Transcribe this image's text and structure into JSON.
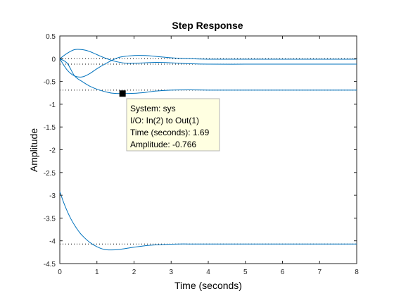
{
  "colors": {
    "curve": "#0072BD",
    "axis": "#262626",
    "steady_line": "#000000",
    "datatip_bg": "#FFFFE1",
    "datatip_border": "#B4B4B4",
    "marker": "#000000"
  },
  "chart_data": {
    "type": "line",
    "title": "Step Response",
    "xlabel": "Time (seconds)",
    "ylabel": "Amplitude",
    "xlim": [
      0,
      8
    ],
    "ylim": [
      -4.5,
      0.5
    ],
    "xticks": [
      "0",
      "1",
      "2",
      "3",
      "4",
      "5",
      "6",
      "7",
      "8"
    ],
    "yticks": [
      "0.5",
      "0",
      "-0.5",
      "-1",
      "-1.5",
      "-2",
      "-2.5",
      "-3",
      "-3.5",
      "-4",
      "-4.5"
    ],
    "grid": false,
    "series": [
      {
        "x": [
          0,
          0.2,
          0.4,
          0.6,
          0.8,
          1.0,
          1.2,
          1.5,
          1.8,
          2.0,
          2.3,
          2.6,
          3.0,
          3.5,
          4.0,
          5.0,
          6.0,
          7.0,
          8.0
        ],
        "y": [
          0,
          0.12,
          0.2,
          0.2,
          0.16,
          0.09,
          0.02,
          -0.06,
          -0.1,
          -0.1,
          -0.09,
          -0.08,
          -0.09,
          -0.11,
          -0.12,
          -0.12,
          -0.12,
          -0.12,
          -0.12
        ]
      },
      {
        "x": [
          0,
          0.2,
          0.4,
          0.6,
          0.8,
          1.0,
          1.3,
          1.6,
          2.0,
          2.3,
          2.6,
          3.0,
          3.5,
          4.0,
          5.0,
          6.0,
          7.0,
          7.9,
          8.0
        ],
        "y": [
          0,
          -0.25,
          -0.38,
          -0.4,
          -0.33,
          -0.22,
          -0.08,
          0.03,
          0.07,
          0.07,
          0.05,
          0.02,
          0.0,
          -0.01,
          -0.01,
          -0.01,
          -0.01,
          -0.01,
          0.0
        ]
      },
      {
        "x": [
          0,
          0.2,
          0.4,
          0.6,
          0.8,
          1.0,
          1.2,
          1.4,
          1.69,
          2.0,
          2.3,
          2.6,
          3.0,
          3.5,
          4.0,
          5.0,
          6.0,
          7.0,
          8.0
        ],
        "y": [
          0,
          -0.1,
          -0.38,
          -0.5,
          -0.6,
          -0.67,
          -0.72,
          -0.755,
          -0.766,
          -0.76,
          -0.74,
          -0.71,
          -0.69,
          -0.685,
          -0.69,
          -0.69,
          -0.69,
          -0.69,
          -0.69
        ]
      },
      {
        "x": [
          0,
          0.1,
          0.2,
          0.3,
          0.4,
          0.5,
          0.6,
          0.8,
          1.0,
          1.2,
          1.4,
          1.6,
          2.0,
          2.4,
          2.8,
          3.2,
          3.6,
          4.0,
          5.0,
          6.0,
          7.0,
          8.0
        ],
        "y": [
          -2.92,
          -3.15,
          -3.35,
          -3.52,
          -3.66,
          -3.78,
          -3.88,
          -4.03,
          -4.13,
          -4.19,
          -4.2,
          -4.19,
          -4.14,
          -4.1,
          -4.08,
          -4.07,
          -4.07,
          -4.07,
          -4.07,
          -4.07,
          -4.07,
          -4.07
        ]
      }
    ],
    "steady_state_values": [
      -0.12,
      0.0,
      -0.69,
      -4.07
    ],
    "datatip": {
      "point": {
        "x": 1.69,
        "y": -0.766
      },
      "lines": [
        "System: sys",
        "I/O: In(2) to Out(1)",
        "Time (seconds): 1.69",
        "Amplitude: -0.766"
      ]
    }
  }
}
